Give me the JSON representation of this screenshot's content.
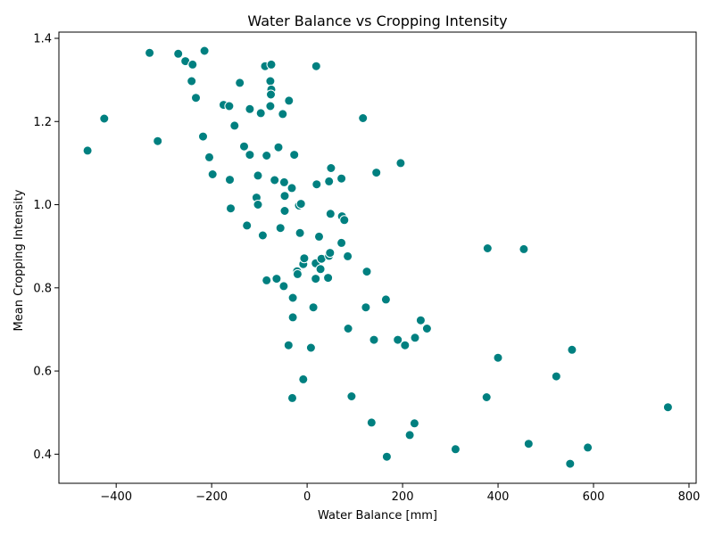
{
  "chart_data": {
    "type": "scatter",
    "title": "Water Balance vs Cropping Intensity",
    "xlabel": "Water Balance [mm]",
    "ylabel": "Mean Cropping Intensity",
    "xlim": [
      -520,
      815
    ],
    "ylim": [
      0.33,
      1.415
    ],
    "xticks": [
      -400,
      -200,
      0,
      200,
      400,
      600,
      800
    ],
    "yticks": [
      0.4,
      0.6,
      0.8,
      1.0,
      1.2,
      1.4
    ],
    "xtick_labels": [
      "−400",
      "−200",
      "0",
      "200",
      "400",
      "600",
      "800"
    ],
    "ytick_labels": [
      "0.4",
      "0.6",
      "0.8",
      "1.0",
      "1.2",
      "1.4"
    ],
    "grid": false,
    "marker_color": "#008080",
    "marker_edge": "#ffffff",
    "points": [
      [
        -460,
        1.13
      ],
      [
        -425,
        1.207
      ],
      [
        -313,
        1.153
      ],
      [
        -330,
        1.365
      ],
      [
        -270,
        1.363
      ],
      [
        -255,
        1.345
      ],
      [
        -240,
        1.337
      ],
      [
        -242,
        1.297
      ],
      [
        -233,
        1.257
      ],
      [
        -215,
        1.37
      ],
      [
        -218,
        1.164
      ],
      [
        -205,
        1.114
      ],
      [
        -198,
        1.073
      ],
      [
        -175,
        1.24
      ],
      [
        -163,
        1.237
      ],
      [
        -162,
        1.06
      ],
      [
        -160,
        0.991
      ],
      [
        -152,
        1.19
      ],
      [
        -141,
        1.293
      ],
      [
        -132,
        1.14
      ],
      [
        -126,
        0.95
      ],
      [
        -120,
        1.23
      ],
      [
        -120,
        1.12
      ],
      [
        -106,
        1.017
      ],
      [
        -103,
        1.07
      ],
      [
        -103,
        1.0
      ],
      [
        -97,
        1.22
      ],
      [
        -93,
        0.926
      ],
      [
        -88,
        1.333
      ],
      [
        -85,
        1.118
      ],
      [
        -85,
        0.818
      ],
      [
        -75,
        1.337
      ],
      [
        -77,
        1.297
      ],
      [
        -75,
        1.277
      ],
      [
        -76,
        1.265
      ],
      [
        -77,
        1.237
      ],
      [
        -68,
        1.059
      ],
      [
        -64,
        0.822
      ],
      [
        -60,
        1.138
      ],
      [
        -56,
        0.944
      ],
      [
        -51,
        1.218
      ],
      [
        -48,
        1.054
      ],
      [
        -47,
        1.021
      ],
      [
        -47,
        0.985
      ],
      [
        -49,
        0.804
      ],
      [
        -38,
        1.25
      ],
      [
        -39,
        0.662
      ],
      [
        -32,
        1.04
      ],
      [
        -30,
        0.729
      ],
      [
        -30,
        0.776
      ],
      [
        -31,
        0.535
      ],
      [
        -27,
        1.12
      ],
      [
        -21,
        0.84
      ],
      [
        -20,
        0.833
      ],
      [
        -17,
        0.998
      ],
      [
        -15,
        0.932
      ],
      [
        -13,
        1.002
      ],
      [
        -8,
        0.857
      ],
      [
        -6,
        0.871
      ],
      [
        -8,
        0.58
      ],
      [
        8,
        0.656
      ],
      [
        13,
        0.753
      ],
      [
        18,
        0.822
      ],
      [
        18,
        0.859
      ],
      [
        20,
        1.049
      ],
      [
        19,
        1.333
      ],
      [
        25,
        0.923
      ],
      [
        28,
        0.845
      ],
      [
        30,
        0.87
      ],
      [
        44,
        0.824
      ],
      [
        46,
        0.877
      ],
      [
        48,
        0.884
      ],
      [
        46,
        1.056
      ],
      [
        50,
        1.088
      ],
      [
        49,
        0.978
      ],
      [
        72,
        0.908
      ],
      [
        72,
        1.063
      ],
      [
        73,
        0.972
      ],
      [
        78,
        0.963
      ],
      [
        85,
        0.876
      ],
      [
        86,
        0.702
      ],
      [
        93,
        0.539
      ],
      [
        117,
        1.208
      ],
      [
        123,
        0.753
      ],
      [
        125,
        0.839
      ],
      [
        135,
        0.476
      ],
      [
        140,
        0.675
      ],
      [
        145,
        1.077
      ],
      [
        165,
        0.772
      ],
      [
        167,
        0.394
      ],
      [
        190,
        0.675
      ],
      [
        196,
        1.1
      ],
      [
        205,
        0.662
      ],
      [
        215,
        0.446
      ],
      [
        225,
        0.474
      ],
      [
        226,
        0.68
      ],
      [
        238,
        0.722
      ],
      [
        251,
        0.702
      ],
      [
        311,
        0.412
      ],
      [
        376,
        0.537
      ],
      [
        378,
        0.895
      ],
      [
        400,
        0.632
      ],
      [
        454,
        0.893
      ],
      [
        464,
        0.425
      ],
      [
        522,
        0.587
      ],
      [
        551,
        0.377
      ],
      [
        555,
        0.651
      ],
      [
        588,
        0.416
      ],
      [
        756,
        0.513
      ]
    ]
  }
}
